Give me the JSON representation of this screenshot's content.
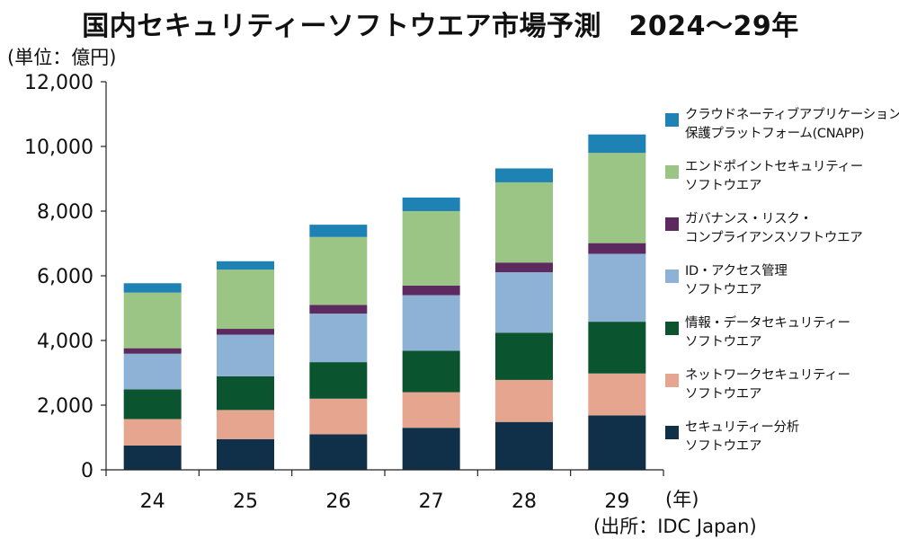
{
  "title": "国内セキュリティーソフトウエア市場予測　2024～29年",
  "unit_label": "(単位：億円)",
  "x_unit_label": "(年)",
  "source_label": "(出所：IDC Japan)",
  "colors": {
    "security_analytics": "#0f3048",
    "network_security": "#e6a58f",
    "info_data_security": "#0b5430",
    "id_access": "#8eb1d6",
    "governance_risk": "#5c2a5e",
    "endpoint": "#9ac584",
    "cnapp": "#1f82b4"
  },
  "legend": [
    {
      "key": "cnapp",
      "lines": [
        "クラウドネーティブアプリケーション",
        "保護プラットフォーム(CNAPP)"
      ]
    },
    {
      "key": "endpoint",
      "lines": [
        "エンドポイントセキュリティー",
        "ソフトウエア"
      ]
    },
    {
      "key": "governance_risk",
      "lines": [
        "ガバナンス・リスク・",
        "コンプライアンスソフトウエア"
      ]
    },
    {
      "key": "id_access",
      "lines": [
        "ID・アクセス管理",
        "ソフトウエア"
      ]
    },
    {
      "key": "info_data_security",
      "lines": [
        "情報・データセキュリティー",
        "ソフトウエア"
      ]
    },
    {
      "key": "network_security",
      "lines": [
        "ネットワークセキュリティー",
        "ソフトウエア"
      ]
    },
    {
      "key": "security_analytics",
      "lines": [
        "セキュリティー分析",
        "ソフトウエア"
      ]
    }
  ],
  "chart_data": {
    "type": "bar",
    "stacked": true,
    "title": "国内セキュリティーソフトウエア市場予測　2024～29年",
    "ylabel": "(単位：億円)",
    "xlabel": "(年)",
    "ylim": [
      0,
      12000
    ],
    "yticks": [
      0,
      2000,
      4000,
      6000,
      8000,
      10000,
      12000
    ],
    "ytick_labels": [
      "0",
      "2,000",
      "4,000",
      "6,000",
      "8,000",
      "10,000",
      "12,000"
    ],
    "categories": [
      "24",
      "25",
      "26",
      "27",
      "28",
      "29"
    ],
    "grid": false,
    "legend_position": "right",
    "series": [
      {
        "key": "security_analytics",
        "name": "セキュリティー分析ソフトウエア",
        "values": [
          750,
          950,
          1100,
          1300,
          1480,
          1680
        ]
      },
      {
        "key": "network_security",
        "name": "ネットワークセキュリティーソフトウエア",
        "values": [
          820,
          900,
          1100,
          1100,
          1300,
          1300
        ]
      },
      {
        "key": "info_data_security",
        "name": "情報・データセキュリティーソフトウエア",
        "values": [
          920,
          1040,
          1130,
          1280,
          1460,
          1600
        ]
      },
      {
        "key": "id_access",
        "name": "ID・アクセス管理ソフトウエア",
        "values": [
          1100,
          1290,
          1500,
          1720,
          1870,
          2100
        ]
      },
      {
        "key": "governance_risk",
        "name": "ガバナンス・リスク・コンプライアンスソフトウエア",
        "values": [
          170,
          180,
          270,
          300,
          300,
          330
        ]
      },
      {
        "key": "endpoint",
        "name": "エンドポイントセキュリティーソフトウエア",
        "values": [
          1720,
          1830,
          2100,
          2300,
          2480,
          2790
        ]
      },
      {
        "key": "cnapp",
        "name": "クラウドネーティブアプリケーション保護プラットフォーム(CNAPP)",
        "values": [
          290,
          260,
          380,
          420,
          430,
          570
        ]
      }
    ]
  }
}
